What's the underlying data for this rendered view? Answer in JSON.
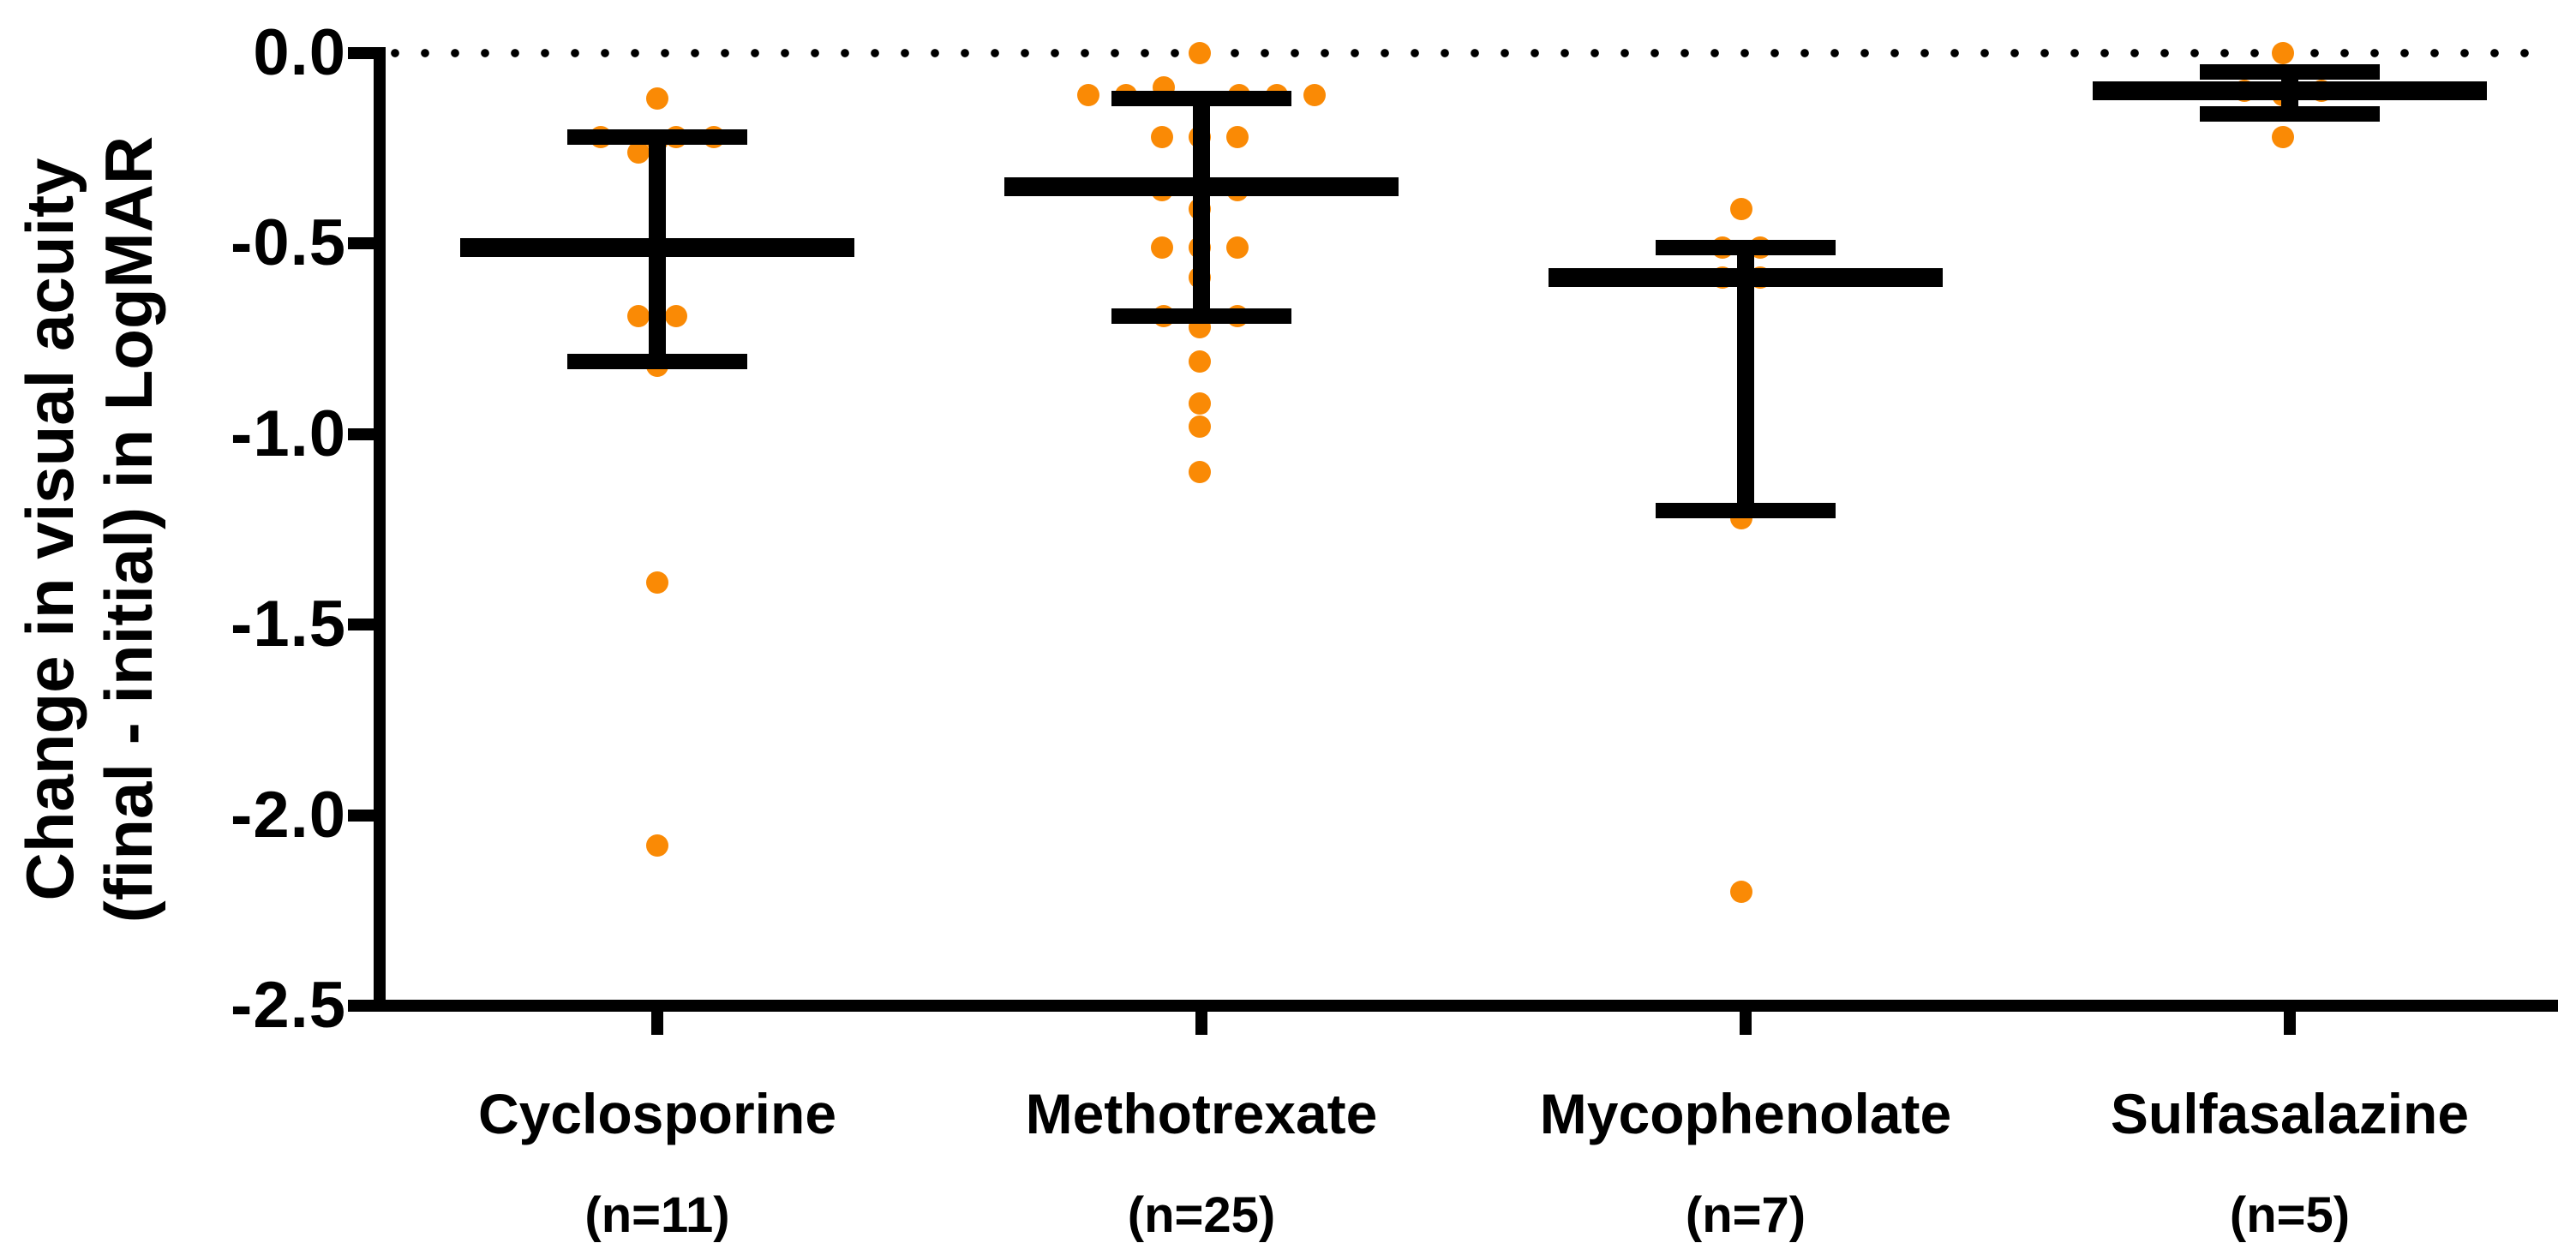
{
  "chart_data": {
    "type": "scatter",
    "title": "",
    "ylabel_line1": "Change in visual acuity",
    "ylabel_line2": "(final - initial) in LogMAR",
    "xlabel": "",
    "ylim": [
      -2.5,
      0.0
    ],
    "yticks": [
      {
        "value": 0.0,
        "label": "0.0"
      },
      {
        "value": -0.5,
        "label": "-0.5"
      },
      {
        "value": -1.0,
        "label": "-1.0"
      },
      {
        "value": -1.5,
        "label": "-1.5"
      },
      {
        "value": -2.0,
        "label": "-2.0"
      },
      {
        "value": -2.5,
        "label": "-2.5"
      }
    ],
    "reference_line_y": 0.0,
    "reference_line_style": "dotted",
    "grid": false,
    "legend": "none",
    "point_color": "#FA8A05",
    "line_color": "#000000",
    "error_bar_type": "mean with upper/lower error caps",
    "groups": [
      {
        "label": "Cyclosporine",
        "n_label": "(n=11)",
        "n": 11,
        "mean": -0.51,
        "err_upper": -0.22,
        "err_lower": -0.81,
        "points": [
          {
            "dx": 0,
            "y": -0.12
          },
          {
            "dx": -66,
            "y": -0.22
          },
          {
            "dx": 22,
            "y": -0.22
          },
          {
            "dx": 66,
            "y": -0.22
          },
          {
            "dx": 0,
            "y": -0.23
          },
          {
            "dx": -22,
            "y": -0.26
          },
          {
            "dx": -22,
            "y": -0.69
          },
          {
            "dx": 22,
            "y": -0.69
          },
          {
            "dx": 0,
            "y": -0.82
          },
          {
            "dx": 0,
            "y": -1.39
          },
          {
            "dx": 0,
            "y": -2.08
          }
        ]
      },
      {
        "label": "Methotrexate",
        "n_label": "(n=25)",
        "n": 25,
        "mean": -0.35,
        "err_upper": -0.12,
        "err_lower": -0.69,
        "points": [
          {
            "dx": -2,
            "y": 0.0
          },
          {
            "dx": -44,
            "y": -0.09
          },
          {
            "dx": -132,
            "y": -0.11
          },
          {
            "dx": -88,
            "y": -0.11
          },
          {
            "dx": 44,
            "y": -0.11
          },
          {
            "dx": 88,
            "y": -0.11
          },
          {
            "dx": 132,
            "y": -0.11
          },
          {
            "dx": -46,
            "y": -0.22
          },
          {
            "dx": -2,
            "y": -0.22
          },
          {
            "dx": 42,
            "y": -0.22
          },
          {
            "dx": -2,
            "y": -0.35
          },
          {
            "dx": -46,
            "y": -0.36
          },
          {
            "dx": 42,
            "y": -0.36
          },
          {
            "dx": -2,
            "y": -0.41
          },
          {
            "dx": -46,
            "y": -0.51
          },
          {
            "dx": -2,
            "y": -0.51
          },
          {
            "dx": 42,
            "y": -0.51
          },
          {
            "dx": -2,
            "y": -0.59
          },
          {
            "dx": -44,
            "y": -0.69
          },
          {
            "dx": 42,
            "y": -0.69
          },
          {
            "dx": -2,
            "y": -0.72
          },
          {
            "dx": -2,
            "y": -0.81
          },
          {
            "dx": -2,
            "y": -0.92
          },
          {
            "dx": -2,
            "y": -0.98
          },
          {
            "dx": -2,
            "y": -1.1
          }
        ]
      },
      {
        "label": "Mycophenolate",
        "n_label": "(n=7)",
        "n": 7,
        "mean": -0.59,
        "err_upper": -0.51,
        "err_lower": -1.2,
        "points": [
          {
            "dx": -5,
            "y": -0.41
          },
          {
            "dx": -27,
            "y": -0.51
          },
          {
            "dx": 17,
            "y": -0.51
          },
          {
            "dx": -27,
            "y": -0.59
          },
          {
            "dx": 17,
            "y": -0.59
          },
          {
            "dx": -5,
            "y": -1.22
          },
          {
            "dx": -5,
            "y": -2.2
          }
        ]
      },
      {
        "label": "Sulfasalazine",
        "n_label": "(n=5)",
        "n": 5,
        "mean": -0.1,
        "err_upper": -0.05,
        "err_lower": -0.16,
        "points": [
          {
            "dx": -8,
            "y": 0.0
          },
          {
            "dx": -53,
            "y": -0.1
          },
          {
            "dx": 37,
            "y": -0.1
          },
          {
            "dx": -8,
            "y": -0.11
          },
          {
            "dx": -8,
            "y": -0.22
          }
        ]
      }
    ]
  }
}
